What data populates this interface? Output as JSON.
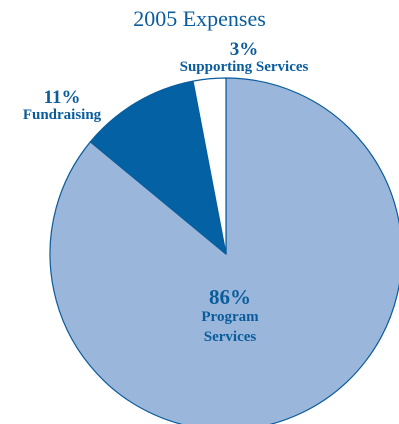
{
  "chart_data": {
    "type": "pie",
    "title": "2005 Expenses",
    "slices": [
      {
        "label": "Program Services",
        "label_lines": [
          "Program",
          "Services"
        ],
        "value": 86,
        "value_label": "86%",
        "color": "#9ab6da"
      },
      {
        "label": "Fundraising",
        "label_lines": [
          "Fundraising"
        ],
        "value": 11,
        "value_label": "11%",
        "color": "#0462a4"
      },
      {
        "label": "Supporting Services",
        "label_lines": [
          "Supporting Services"
        ],
        "value": 3,
        "value_label": "3%",
        "color": "#ffffff"
      }
    ],
    "legend": "none",
    "stroke_color": "#0a5c9c"
  }
}
